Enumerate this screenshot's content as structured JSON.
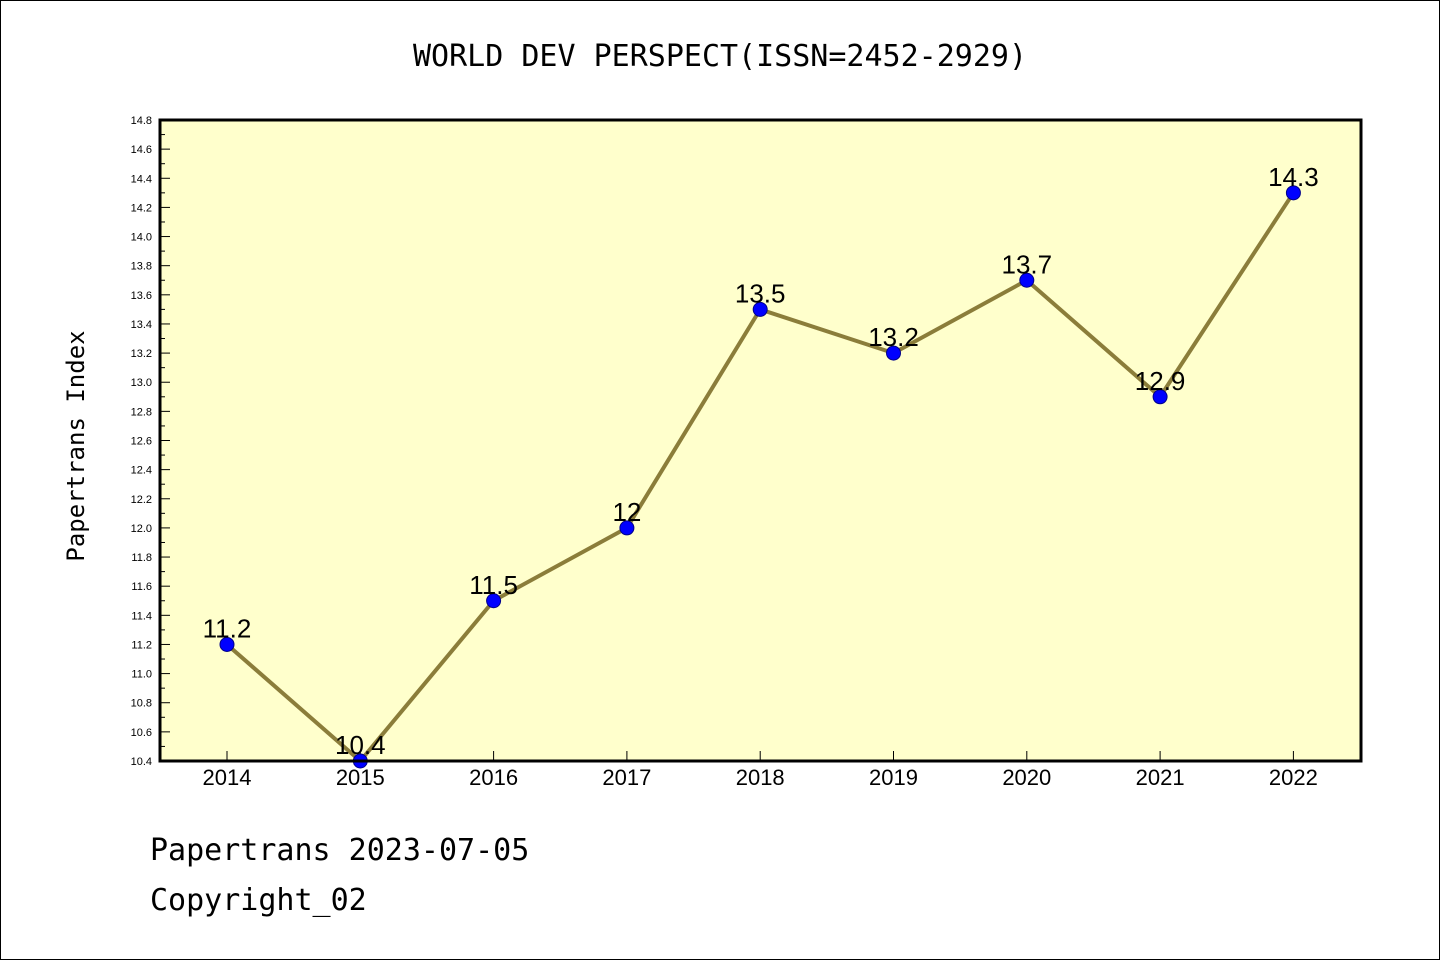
{
  "chart_data": {
    "type": "line",
    "title": "WORLD DEV PERSPECT(ISSN=2452-2929)",
    "xlabel": "",
    "ylabel": "Papertrans Index",
    "categories": [
      "2014",
      "2015",
      "2016",
      "2017",
      "2018",
      "2019",
      "2020",
      "2021",
      "2022"
    ],
    "values": [
      11.2,
      10.4,
      11.5,
      12,
      13.5,
      13.2,
      13.7,
      12.9,
      14.3
    ],
    "data_labels": [
      "11.2",
      "10.4",
      "11.5",
      "12",
      "13.5",
      "13.2",
      "13.7",
      "12.9",
      "14.3"
    ],
    "ylim": [
      10.4,
      14.8
    ],
    "yticks": [
      "10.4",
      "10.6",
      "10.8",
      "11.0",
      "11.2",
      "11.4",
      "11.6",
      "11.8",
      "12.0",
      "12.2",
      "12.4",
      "12.6",
      "12.8",
      "13.0",
      "13.2",
      "13.4",
      "13.6",
      "13.8",
      "14.0",
      "14.2",
      "14.4",
      "14.6",
      "14.8"
    ],
    "grid": false,
    "legend": "none",
    "colors": {
      "plot_background": "#ffffcc",
      "line": "#8b7d3a",
      "marker": "#0000ff"
    }
  },
  "footer": {
    "line1": "Papertrans 2023-07-05",
    "line2": "Copyright_02"
  }
}
